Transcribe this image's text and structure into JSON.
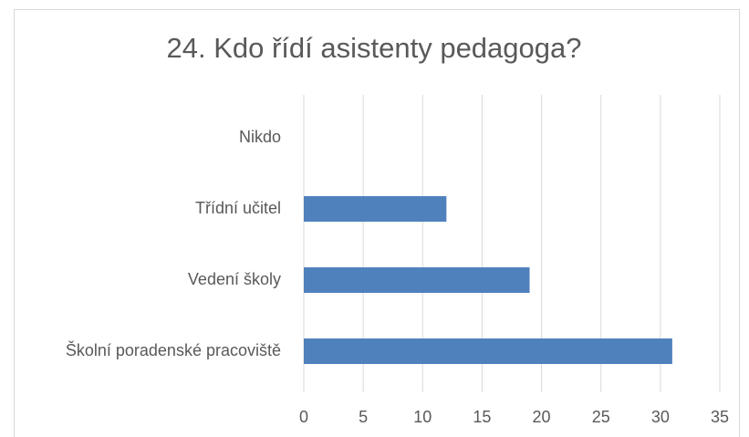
{
  "chart_data": {
    "type": "barh",
    "title": "24. Kdo řídí asistenty pedagoga?",
    "categories": [
      "Nikdo",
      "Třídní učitel",
      "Vedení školy",
      "Školní poradenské pracoviště"
    ],
    "values": [
      0,
      12,
      19,
      31
    ],
    "color": "#4f81bd",
    "xlim": [
      0,
      35
    ],
    "xticks": [
      0,
      5,
      10,
      15,
      20,
      25,
      30,
      35
    ],
    "grid": true
  }
}
